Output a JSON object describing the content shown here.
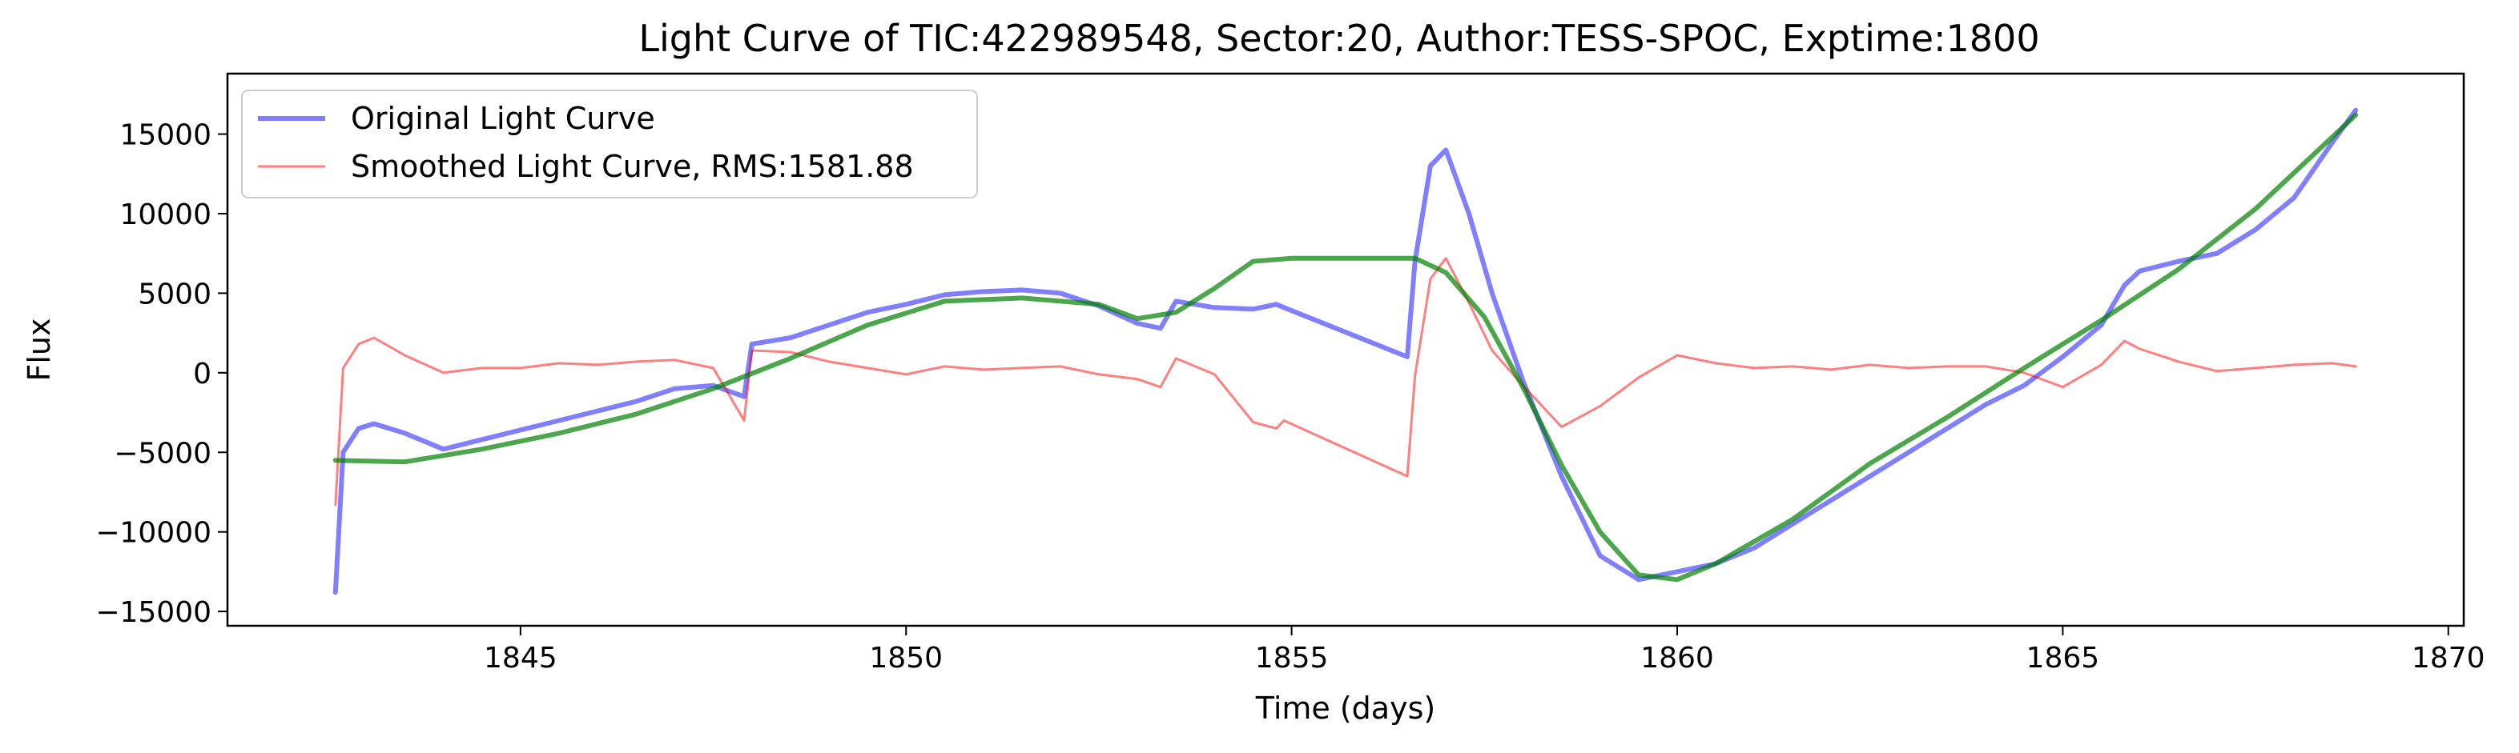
{
  "chart_data": {
    "type": "line",
    "title": "Light Curve of TIC:422989548, Sector:20, Author:TESS-SPOC, Exptime:1800",
    "xlabel": "Time (days)",
    "ylabel": "Flux",
    "xlim": [
      1841.2,
      1870.2
    ],
    "ylim": [
      -15900,
      18800
    ],
    "xticks": [
      1845,
      1850,
      1855,
      1860,
      1865,
      1870
    ],
    "yticks": [
      -15000,
      -10000,
      -5000,
      0,
      5000,
      10000,
      15000
    ],
    "xtick_labels": [
      "1845",
      "1850",
      "1855",
      "1860",
      "1865",
      "1870"
    ],
    "ytick_labels": [
      "−15000",
      "−10000",
      "−5000",
      "0",
      "5000",
      "10000",
      "15000"
    ],
    "grid": false,
    "legend_position": "top-left",
    "series": [
      {
        "name": "Original Light Curve",
        "color": "#0000ff",
        "x": [
          1842.6,
          1842.7,
          1842.9,
          1843.1,
          1843.5,
          1844.0,
          1844.5,
          1845.0,
          1845.5,
          1846.0,
          1846.5,
          1847.0,
          1847.5,
          1847.9,
          1848.0,
          1848.5,
          1849.0,
          1849.5,
          1850.0,
          1850.5,
          1851.0,
          1851.5,
          1852.0,
          1852.5,
          1853.0,
          1853.3,
          1853.5,
          1854.0,
          1854.5,
          1854.8,
          1854.9,
          1856.5,
          1856.6,
          1856.8,
          1857.0,
          1857.3,
          1857.6,
          1858.0,
          1858.5,
          1859.0,
          1859.5,
          1860.0,
          1860.5,
          1861.0,
          1861.5,
          1862.0,
          1862.5,
          1863.0,
          1863.5,
          1864.0,
          1864.5,
          1865.0,
          1865.5,
          1865.8,
          1866.0,
          1866.5,
          1867.0,
          1867.5,
          1868.0,
          1868.5,
          1868.8
        ],
        "y": [
          -13800,
          -5000,
          -3500,
          -3200,
          -3800,
          -4800,
          -4200,
          -3600,
          -3000,
          -2400,
          -1800,
          -1000,
          -800,
          -1500,
          1800,
          2200,
          3000,
          3800,
          4300,
          4900,
          5100,
          5200,
          5000,
          4200,
          3100,
          2800,
          4500,
          4100,
          4000,
          4300,
          4100,
          1000,
          7000,
          13000,
          14000,
          10000,
          5000,
          -500,
          -6500,
          -11500,
          -13000,
          -12500,
          -12000,
          -11000,
          -9500,
          -8000,
          -6500,
          -5000,
          -3500,
          -2000,
          -800,
          1000,
          3000,
          5500,
          6400,
          7000,
          7500,
          9000,
          11000,
          14500,
          16500
        ]
      },
      {
        "name": "Smoothed Light Curve, RMS:1581.88",
        "color": "#ff0000",
        "x": [
          1842.6,
          1842.7,
          1842.9,
          1843.1,
          1843.5,
          1844.0,
          1844.5,
          1845.0,
          1845.5,
          1846.0,
          1846.5,
          1847.0,
          1847.5,
          1847.9,
          1848.0,
          1848.5,
          1849.0,
          1849.5,
          1850.0,
          1850.5,
          1851.0,
          1851.5,
          1852.0,
          1852.5,
          1853.0,
          1853.3,
          1853.5,
          1854.0,
          1854.5,
          1854.8,
          1854.9,
          1856.5,
          1856.6,
          1856.8,
          1857.0,
          1857.3,
          1857.6,
          1858.0,
          1858.5,
          1859.0,
          1859.5,
          1860.0,
          1860.5,
          1861.0,
          1861.5,
          1862.0,
          1862.5,
          1863.0,
          1863.5,
          1864.0,
          1864.5,
          1865.0,
          1865.5,
          1865.8,
          1866.0,
          1866.5,
          1867.0,
          1867.5,
          1868.0,
          1868.5,
          1868.8
        ],
        "y": [
          -8300,
          300,
          1800,
          2200,
          1100,
          0,
          300,
          300,
          600,
          500,
          700,
          800,
          300,
          -3000,
          1400,
          1300,
          700,
          300,
          -100,
          400,
          200,
          300,
          400,
          -100,
          -400,
          -900,
          900,
          -100,
          -3100,
          -3500,
          -3000,
          -6500,
          -200,
          5900,
          7200,
          4400,
          1400,
          -800,
          -3400,
          -2100,
          -300,
          1100,
          600,
          300,
          400,
          200,
          500,
          300,
          400,
          400,
          0,
          -900,
          500,
          2000,
          1500,
          700,
          100,
          300,
          500,
          600,
          400
        ]
      },
      {
        "name": "",
        "color": "#008000",
        "x": [
          1842.6,
          1843.5,
          1844.5,
          1845.5,
          1846.5,
          1847.5,
          1848.5,
          1849.5,
          1850.5,
          1851.5,
          1852.5,
          1853.0,
          1853.5,
          1854.0,
          1854.5,
          1855.0,
          1856.0,
          1856.6,
          1857.0,
          1857.5,
          1858.0,
          1858.5,
          1859.0,
          1859.5,
          1860.0,
          1860.5,
          1861.5,
          1862.5,
          1863.5,
          1864.5,
          1865.5,
          1866.5,
          1867.5,
          1868.8
        ],
        "y": [
          -5500,
          -5600,
          -4800,
          -3800,
          -2600,
          -1000,
          900,
          3000,
          4500,
          4700,
          4300,
          3400,
          3800,
          5300,
          7000,
          7200,
          7200,
          7200,
          6300,
          3500,
          -900,
          -5800,
          -10000,
          -12700,
          -13000,
          -12000,
          -9200,
          -5700,
          -2800,
          300,
          3300,
          6500,
          10300,
          16200
        ]
      }
    ]
  }
}
